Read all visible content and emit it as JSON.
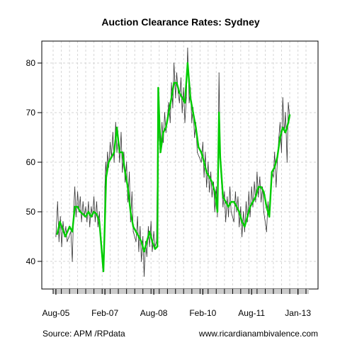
{
  "chart_data": {
    "type": "line",
    "title": "Auction Clearance Rates: Sydney",
    "xlabel": "",
    "ylabel": "",
    "x_range": [
      "2005-07",
      "2013-04"
    ],
    "ylim": [
      35,
      85
    ],
    "y_ticks": [
      40,
      50,
      60,
      70,
      80
    ],
    "x_ticks": [
      {
        "date": "2005-08",
        "label": "Aug-05"
      },
      {
        "date": "2007-02",
        "label": "Feb-07"
      },
      {
        "date": "2008-08",
        "label": "Aug-08"
      },
      {
        "date": "2010-02",
        "label": "Feb-10"
      },
      {
        "date": "2011-08",
        "label": "Aug-11"
      },
      {
        "date": "2013-01",
        "label": "Jan-13"
      }
    ],
    "grid": true,
    "series": [
      {
        "style": "weekly",
        "color": "#333333",
        "points": [
          [
            "2005-08-01",
            45
          ],
          [
            "2005-08-20",
            52
          ],
          [
            "2005-09-05",
            44
          ],
          [
            "2005-09-20",
            49
          ],
          [
            "2005-10-05",
            43
          ],
          [
            "2005-10-20",
            48
          ],
          [
            "2005-11-05",
            45
          ],
          [
            "2005-11-20",
            47
          ],
          [
            "2005-12-05",
            44
          ],
          [
            "2006-01-15",
            46
          ],
          [
            "2006-02-01",
            40
          ],
          [
            "2006-02-15",
            50
          ],
          [
            "2006-03-01",
            55
          ],
          [
            "2006-03-15",
            49
          ],
          [
            "2006-04-01",
            54
          ],
          [
            "2006-04-15",
            50
          ],
          [
            "2006-05-01",
            53
          ],
          [
            "2006-05-15",
            48
          ],
          [
            "2006-06-01",
            52
          ],
          [
            "2006-06-15",
            49
          ],
          [
            "2006-07-01",
            51
          ],
          [
            "2006-07-15",
            48
          ],
          [
            "2006-08-01",
            52
          ],
          [
            "2006-08-15",
            47
          ],
          [
            "2006-09-01",
            51
          ],
          [
            "2006-09-15",
            49
          ],
          [
            "2006-10-01",
            53
          ],
          [
            "2006-10-15",
            48
          ],
          [
            "2006-11-01",
            52
          ],
          [
            "2006-11-15",
            47
          ],
          [
            "2006-12-01",
            50
          ],
          [
            "2006-12-15",
            44
          ],
          [
            "2007-01-10",
            38
          ],
          [
            "2007-01-25",
            46
          ],
          [
            "2007-02-01",
            55
          ],
          [
            "2007-02-10",
            60
          ],
          [
            "2007-02-20",
            57
          ],
          [
            "2007-03-01",
            62
          ],
          [
            "2007-03-15",
            59
          ],
          [
            "2007-04-01",
            64
          ],
          [
            "2007-04-15",
            61
          ],
          [
            "2007-05-01",
            66
          ],
          [
            "2007-05-15",
            60
          ],
          [
            "2007-06-01",
            68
          ],
          [
            "2007-06-15",
            62
          ],
          [
            "2007-07-01",
            65
          ],
          [
            "2007-07-15",
            60
          ],
          [
            "2007-08-01",
            66
          ],
          [
            "2007-08-15",
            58
          ],
          [
            "2007-09-01",
            62
          ],
          [
            "2007-09-15",
            56
          ],
          [
            "2007-10-01",
            60
          ],
          [
            "2007-10-15",
            52
          ],
          [
            "2007-11-01",
            58
          ],
          [
            "2007-11-15",
            48
          ],
          [
            "2007-12-01",
            54
          ],
          [
            "2007-12-15",
            46
          ],
          [
            "2008-01-15",
            44
          ],
          [
            "2008-02-01",
            49
          ],
          [
            "2008-02-15",
            42
          ],
          [
            "2008-03-01",
            47
          ],
          [
            "2008-03-15",
            40
          ],
          [
            "2008-04-01",
            45
          ],
          [
            "2008-04-15",
            37
          ],
          [
            "2008-05-01",
            44
          ],
          [
            "2008-05-15",
            41
          ],
          [
            "2008-06-01",
            47
          ],
          [
            "2008-06-15",
            43
          ],
          [
            "2008-07-01",
            48
          ],
          [
            "2008-07-15",
            42
          ],
          [
            "2008-08-01",
            46
          ],
          [
            "2008-08-15",
            43
          ],
          [
            "2008-09-01",
            44
          ],
          [
            "2008-09-20",
            74
          ],
          [
            "2008-10-01",
            65
          ],
          [
            "2008-10-15",
            62
          ],
          [
            "2008-11-01",
            68
          ],
          [
            "2008-11-15",
            64
          ],
          [
            "2008-12-01",
            70
          ],
          [
            "2008-12-15",
            66
          ],
          [
            "2009-01-15",
            72
          ],
          [
            "2009-02-01",
            68
          ],
          [
            "2009-02-15",
            76
          ],
          [
            "2009-03-01",
            71
          ],
          [
            "2009-03-15",
            80
          ],
          [
            "2009-04-01",
            73
          ],
          [
            "2009-04-15",
            78
          ],
          [
            "2009-05-01",
            74
          ],
          [
            "2009-05-15",
            72
          ],
          [
            "2009-06-01",
            77
          ],
          [
            "2009-06-15",
            70
          ],
          [
            "2009-07-01",
            75
          ],
          [
            "2009-07-15",
            68
          ],
          [
            "2009-08-01",
            73
          ],
          [
            "2009-08-15",
            83
          ],
          [
            "2009-09-01",
            72
          ],
          [
            "2009-09-15",
            75
          ],
          [
            "2009-10-01",
            68
          ],
          [
            "2009-10-15",
            71
          ],
          [
            "2009-11-01",
            65
          ],
          [
            "2009-11-15",
            68
          ],
          [
            "2009-12-01",
            62
          ],
          [
            "2010-01-15",
            60
          ],
          [
            "2010-02-01",
            64
          ],
          [
            "2010-02-15",
            57
          ],
          [
            "2010-03-01",
            62
          ],
          [
            "2010-03-15",
            55
          ],
          [
            "2010-04-01",
            60
          ],
          [
            "2010-04-15",
            54
          ],
          [
            "2010-05-01",
            58
          ],
          [
            "2010-05-15",
            53
          ],
          [
            "2010-06-01",
            56
          ],
          [
            "2010-06-15",
            50
          ],
          [
            "2010-07-01",
            55
          ],
          [
            "2010-07-15",
            49
          ],
          [
            "2010-08-01",
            78
          ],
          [
            "2010-08-15",
            60
          ],
          [
            "2010-09-01",
            55
          ],
          [
            "2010-09-15",
            51
          ],
          [
            "2010-10-01",
            54
          ],
          [
            "2010-10-15",
            48
          ],
          [
            "2010-11-01",
            53
          ],
          [
            "2010-11-15",
            49
          ],
          [
            "2010-12-01",
            55
          ],
          [
            "2010-12-15",
            50
          ],
          [
            "2011-01-15",
            48
          ],
          [
            "2011-02-01",
            54
          ],
          [
            "2011-02-15",
            50
          ],
          [
            "2011-03-01",
            53
          ],
          [
            "2011-03-15",
            47
          ],
          [
            "2011-04-01",
            51
          ],
          [
            "2011-04-15",
            45
          ],
          [
            "2011-05-01",
            50
          ],
          [
            "2011-05-15",
            46
          ],
          [
            "2011-06-01",
            52
          ],
          [
            "2011-06-15",
            48
          ],
          [
            "2011-07-01",
            54
          ],
          [
            "2011-07-15",
            49
          ],
          [
            "2011-08-01",
            55
          ],
          [
            "2011-08-15",
            51
          ],
          [
            "2011-09-01",
            56
          ],
          [
            "2011-09-15",
            52
          ],
          [
            "2011-10-01",
            58
          ],
          [
            "2011-10-15",
            53
          ],
          [
            "2011-11-01",
            57
          ],
          [
            "2011-11-15",
            52
          ],
          [
            "2011-12-01",
            55
          ],
          [
            "2011-12-15",
            50
          ],
          [
            "2012-01-15",
            46
          ],
          [
            "2012-02-01",
            52
          ],
          [
            "2012-02-15",
            49
          ],
          [
            "2012-03-01",
            55
          ],
          [
            "2012-03-15",
            58
          ],
          [
            "2012-04-01",
            57
          ],
          [
            "2012-04-15",
            62
          ],
          [
            "2012-05-01",
            55
          ],
          [
            "2012-05-15",
            60
          ],
          [
            "2012-06-01",
            65
          ],
          [
            "2012-06-15",
            68
          ],
          [
            "2012-07-01",
            62
          ],
          [
            "2012-07-15",
            73
          ],
          [
            "2012-08-01",
            66
          ],
          [
            "2012-08-15",
            70
          ],
          [
            "2012-09-01",
            60
          ],
          [
            "2012-09-15",
            72
          ],
          [
            "2012-10-01",
            69
          ]
        ]
      },
      {
        "style": "smoothed",
        "color": "#00cc00",
        "points": [
          [
            "2005-08-15",
            45.5
          ],
          [
            "2005-09-15",
            48
          ],
          [
            "2005-10-15",
            46.5
          ],
          [
            "2005-11-15",
            45
          ],
          [
            "2006-01-01",
            47
          ],
          [
            "2006-02-01",
            46
          ],
          [
            "2006-03-01",
            51
          ],
          [
            "2006-04-01",
            51
          ],
          [
            "2006-05-01",
            50
          ],
          [
            "2006-06-01",
            49.5
          ],
          [
            "2006-07-01",
            49
          ],
          [
            "2006-08-01",
            50
          ],
          [
            "2006-09-01",
            49
          ],
          [
            "2006-10-01",
            50
          ],
          [
            "2006-11-01",
            49.5
          ],
          [
            "2006-12-01",
            48
          ],
          [
            "2007-01-15",
            38
          ],
          [
            "2007-02-15",
            57
          ],
          [
            "2007-03-15",
            60
          ],
          [
            "2007-04-15",
            61
          ],
          [
            "2007-05-15",
            62
          ],
          [
            "2007-06-15",
            67
          ],
          [
            "2007-07-15",
            62
          ],
          [
            "2007-08-15",
            62
          ],
          [
            "2007-09-15",
            58
          ],
          [
            "2007-10-15",
            55
          ],
          [
            "2007-11-15",
            50
          ],
          [
            "2007-12-15",
            47
          ],
          [
            "2008-01-15",
            46
          ],
          [
            "2008-02-15",
            45
          ],
          [
            "2008-03-15",
            44
          ],
          [
            "2008-04-15",
            42
          ],
          [
            "2008-05-15",
            44
          ],
          [
            "2008-06-15",
            46
          ],
          [
            "2008-07-15",
            44
          ],
          [
            "2008-08-15",
            42.5
          ],
          [
            "2008-09-10",
            43
          ],
          [
            "2008-09-20",
            75
          ],
          [
            "2008-10-15",
            62
          ],
          [
            "2008-11-15",
            66
          ],
          [
            "2008-12-15",
            67
          ],
          [
            "2009-01-15",
            70
          ],
          [
            "2009-02-15",
            73
          ],
          [
            "2009-03-15",
            76
          ],
          [
            "2009-04-15",
            76
          ],
          [
            "2009-05-15",
            74
          ],
          [
            "2009-06-15",
            73
          ],
          [
            "2009-07-15",
            72
          ],
          [
            "2009-08-15",
            80
          ],
          [
            "2009-09-15",
            73
          ],
          [
            "2009-10-15",
            70
          ],
          [
            "2009-11-15",
            67
          ],
          [
            "2009-12-15",
            63
          ],
          [
            "2010-01-15",
            62
          ],
          [
            "2010-02-15",
            60
          ],
          [
            "2010-03-15",
            58
          ],
          [
            "2010-04-15",
            57
          ],
          [
            "2010-05-15",
            56
          ],
          [
            "2010-06-15",
            54
          ],
          [
            "2010-07-15",
            50
          ],
          [
            "2010-08-01",
            70
          ],
          [
            "2010-08-15",
            61
          ],
          [
            "2010-09-15",
            53
          ],
          [
            "2010-10-15",
            52
          ],
          [
            "2010-11-15",
            51
          ],
          [
            "2010-12-15",
            52
          ],
          [
            "2011-01-15",
            52
          ],
          [
            "2011-02-15",
            51
          ],
          [
            "2011-03-15",
            50
          ],
          [
            "2011-04-15",
            48
          ],
          [
            "2011-05-15",
            47
          ],
          [
            "2011-06-15",
            49
          ],
          [
            "2011-07-15",
            51
          ],
          [
            "2011-08-15",
            52
          ],
          [
            "2011-09-15",
            53
          ],
          [
            "2011-10-15",
            55
          ],
          [
            "2011-11-15",
            55
          ],
          [
            "2011-12-15",
            54
          ],
          [
            "2012-01-15",
            51
          ],
          [
            "2012-02-15",
            49
          ],
          [
            "2012-03-15",
            58
          ],
          [
            "2012-04-15",
            59
          ],
          [
            "2012-05-15",
            61
          ],
          [
            "2012-06-15",
            65
          ],
          [
            "2012-07-15",
            67
          ],
          [
            "2012-08-15",
            66
          ],
          [
            "2012-09-15",
            68
          ],
          [
            "2012-10-01",
            69.5
          ]
        ]
      }
    ]
  },
  "footer": {
    "source": "Source: APM /RPdata",
    "website": "www.ricardianambivalence.com"
  }
}
